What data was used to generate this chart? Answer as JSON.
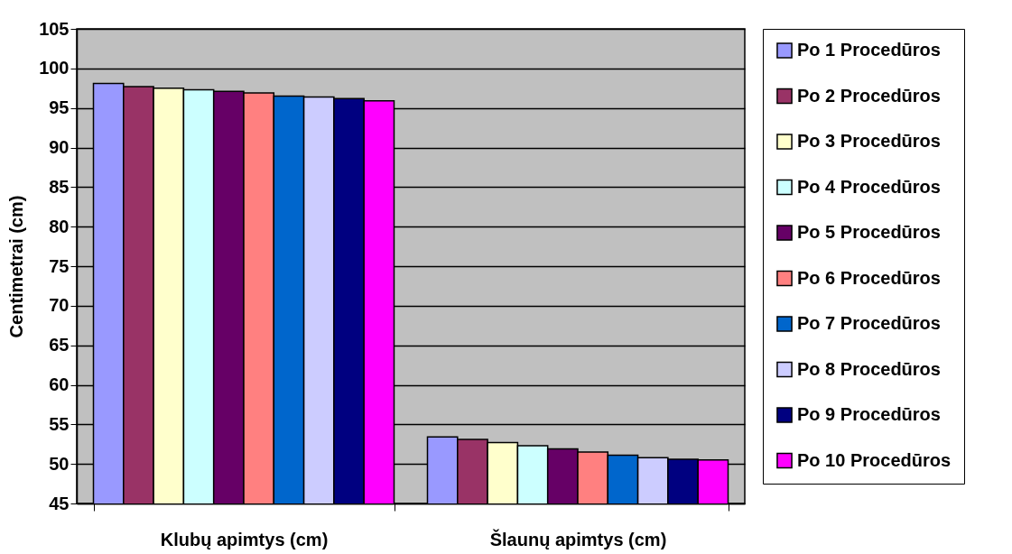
{
  "chart_data": {
    "type": "bar",
    "ylabel": "Centimetrai (cm)",
    "categories": [
      "Klubų apimtys (cm)",
      "Šlaunų apimtys (cm)"
    ],
    "series": [
      {
        "name": "Po 1 Procedūros",
        "color": "#9999ff",
        "values": [
          98.1,
          53.4
        ]
      },
      {
        "name": "Po 2 Procedūros",
        "color": "#993366",
        "values": [
          97.7,
          53.1
        ]
      },
      {
        "name": "Po 3 Procedūros",
        "color": "#ffffcc",
        "values": [
          97.5,
          52.7
        ]
      },
      {
        "name": "Po 4 Procedūros",
        "color": "#ccffff",
        "values": [
          97.3,
          52.3
        ]
      },
      {
        "name": "Po 5 Procedūros",
        "color": "#660066",
        "values": [
          97.1,
          51.9
        ]
      },
      {
        "name": "Po 6 Procedūros",
        "color": "#ff8080",
        "values": [
          96.9,
          51.5
        ]
      },
      {
        "name": "Po 7 Procedūros",
        "color": "#0066cc",
        "values": [
          96.5,
          51.1
        ]
      },
      {
        "name": "Po 8 Procedūros",
        "color": "#ccccff",
        "values": [
          96.4,
          50.8
        ]
      },
      {
        "name": "Po 9 Procedūros",
        "color": "#000080",
        "values": [
          96.2,
          50.6
        ]
      },
      {
        "name": "Po 10 Procedūros",
        "color": "#ff00ff",
        "values": [
          95.9,
          50.5
        ]
      }
    ],
    "ylim": [
      45,
      105
    ],
    "yticks": [
      45,
      50,
      55,
      60,
      65,
      70,
      75,
      80,
      85,
      90,
      95,
      100,
      105
    ],
    "grid": "y",
    "legend": "right"
  }
}
